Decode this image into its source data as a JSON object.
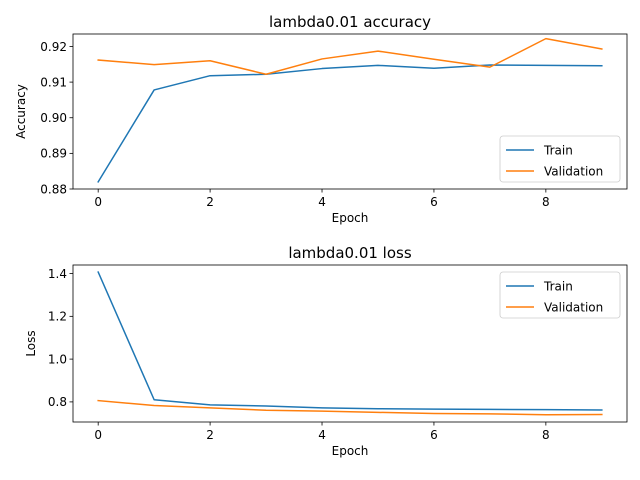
{
  "chart_data": [
    {
      "type": "line",
      "title": "lambda0.01 accuracy",
      "xlabel": "Epoch",
      "ylabel": "Accuracy",
      "x": [
        0,
        1,
        2,
        3,
        4,
        5,
        6,
        7,
        8,
        9
      ],
      "xlim": [
        -0.45,
        9.45
      ],
      "ylim": [
        0.88,
        0.9235
      ],
      "xticks": [
        0,
        2,
        4,
        6,
        8
      ],
      "yticks": [
        0.88,
        0.89,
        0.9,
        0.91,
        0.92
      ],
      "ytick_labels": [
        "0.88",
        "0.89",
        "0.90",
        "0.91",
        "0.92"
      ],
      "legend_position": "lower-right",
      "grid": false,
      "series": [
        {
          "name": "Train",
          "color": "#1f77b4",
          "values": [
            0.882,
            0.9078,
            0.9118,
            0.9122,
            0.9138,
            0.9147,
            0.9139,
            0.9148,
            0.9147,
            0.9146
          ]
        },
        {
          "name": "Validation",
          "color": "#ff7f0e",
          "values": [
            0.9162,
            0.9149,
            0.916,
            0.9122,
            0.9165,
            0.9187,
            0.9164,
            0.9142,
            0.9222,
            0.9193
          ]
        }
      ]
    },
    {
      "type": "line",
      "title": "lambda0.01 loss",
      "xlabel": "Epoch",
      "ylabel": "Loss",
      "x": [
        0,
        1,
        2,
        3,
        4,
        5,
        6,
        7,
        8,
        9
      ],
      "xlim": [
        -0.45,
        9.45
      ],
      "ylim": [
        0.706,
        1.44
      ],
      "xticks": [
        0,
        2,
        4,
        6,
        8
      ],
      "yticks": [
        0.8,
        1.0,
        1.2,
        1.4
      ],
      "ytick_labels": [
        "0.8",
        "1.0",
        "1.2",
        "1.4"
      ],
      "legend_position": "upper-right",
      "grid": false,
      "series": [
        {
          "name": "Train",
          "color": "#1f77b4",
          "values": [
            1.407,
            0.81,
            0.786,
            0.781,
            0.772,
            0.768,
            0.766,
            0.765,
            0.764,
            0.762
          ]
        },
        {
          "name": "Validation",
          "color": "#ff7f0e",
          "values": [
            0.806,
            0.783,
            0.772,
            0.761,
            0.757,
            0.751,
            0.746,
            0.744,
            0.74,
            0.741
          ]
        }
      ]
    }
  ]
}
